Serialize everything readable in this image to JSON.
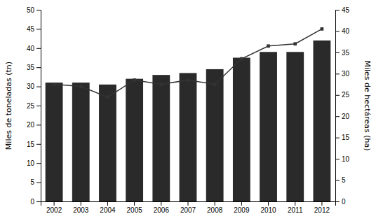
{
  "chart_data": {
    "type": "bar",
    "categories": [
      "2002",
      "2003",
      "2004",
      "2005",
      "2006",
      "2007",
      "2008",
      "2009",
      "2010",
      "2011",
      "2012"
    ],
    "series": [
      {
        "type": "bar",
        "color": "#2a2a2a",
        "values": [
          31.0,
          31.0,
          30.5,
          32.0,
          33.0,
          33.5,
          34.5,
          37.5,
          39.0,
          39.0,
          42.0
        ]
      },
      {
        "type": "line",
        "color": "#333333",
        "marker": "square",
        "axis": "y2",
        "values": [
          27.5,
          27.0,
          24.5,
          28.5,
          27.5,
          28.5,
          27.5,
          33.5,
          36.5,
          37.0,
          40.5
        ]
      }
    ],
    "ylabel": "Miles de toneladas (tn)",
    "y2label": "Miles de hectáreas (ha)",
    "ylim": [
      0,
      50
    ],
    "yticks": [
      0,
      5,
      10,
      15,
      20,
      25,
      30,
      35,
      40,
      45,
      50
    ],
    "y2lim": [
      0,
      45
    ],
    "y2ticks": [
      0,
      5,
      10,
      15,
      20,
      25,
      30,
      35,
      40,
      45
    ],
    "grid": false
  }
}
